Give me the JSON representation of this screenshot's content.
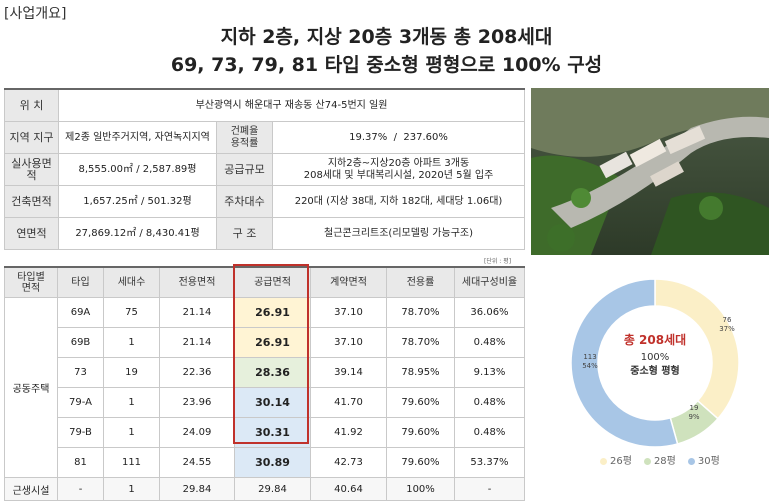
{
  "section_title": "[사업개요]",
  "headline": {
    "line1": "지하 2층, 지상 20층 3개동 총 208세대",
    "line2": "69, 73, 79, 81 타입 중소형 평형으로 100% 구성"
  },
  "info": {
    "location_label": "위 치",
    "location_value": "부산광역시 해운대구 재송동 산74-5번지 일원",
    "zone_label": "지역 지구",
    "zone_value": "제2종 일반주거지역, 자연녹지지역",
    "ratio_label": "건폐율\n용적률",
    "ratio_value": "19.37%  /  237.60%",
    "area_label": "실사용면적",
    "area_value": "8,555.00㎡ / 2,587.89평",
    "supply_label": "공급규모",
    "supply_value": "지하2층~지상20층 아파트 3개동\n208세대 및 부대복리시설, 2020년 5월 입주",
    "building_label": "건축면적",
    "building_value": "1,657.25㎡ / 501.32평",
    "parking_label": "주차대수",
    "parking_value": "220대 (지상 38대, 지하 182대, 세대당 1.06대)",
    "gross_label": "연면적",
    "gross_value": "27,869.12㎡ / 8,430.41평",
    "structure_label": "구 조",
    "structure_value": "철근콘크리트조(리모델링 가능구조)"
  },
  "unit_note": "[단위 : 평]",
  "types": {
    "headers": [
      "타입별\n면적",
      "타입",
      "세대수",
      "전용면적",
      "공급면적",
      "계약면적",
      "전용률",
      "세대구성비율"
    ],
    "group_label": "공동주택",
    "rows": [
      {
        "type": "69A",
        "units": "75",
        "exclusive": "21.14",
        "supply": "26.91",
        "contract": "37.10",
        "rate": "78.70%",
        "ratio": "36.06%",
        "color": "#fff4d4"
      },
      {
        "type": "69B",
        "units": "1",
        "exclusive": "21.14",
        "supply": "26.91",
        "contract": "37.10",
        "rate": "78.70%",
        "ratio": "0.48%",
        "color": "#fff4d4"
      },
      {
        "type": "73",
        "units": "19",
        "exclusive": "22.36",
        "supply": "28.36",
        "contract": "39.14",
        "rate": "78.95%",
        "ratio": "9.13%",
        "color": "#e6f0dc"
      },
      {
        "type": "79-A",
        "units": "1",
        "exclusive": "23.96",
        "supply": "30.14",
        "contract": "41.70",
        "rate": "79.60%",
        "ratio": "0.48%",
        "color": "#dce9f6"
      },
      {
        "type": "79-B",
        "units": "1",
        "exclusive": "24.09",
        "supply": "30.31",
        "contract": "41.92",
        "rate": "79.60%",
        "ratio": "0.48%",
        "color": "#dce9f6"
      },
      {
        "type": "81",
        "units": "111",
        "exclusive": "24.55",
        "supply": "30.89",
        "contract": "42.73",
        "rate": "79.60%",
        "ratio": "53.37%",
        "color": "#dce9f6"
      }
    ],
    "facility": {
      "label": "근생시설",
      "type": "-",
      "units": "1",
      "exclusive": "29.84",
      "supply": "29.84",
      "contract": "40.64",
      "rate": "100%",
      "ratio": "-"
    }
  },
  "donut": {
    "center_title": "총 208세대",
    "center_pct": "100%",
    "center_sub": "중소형 평형",
    "colors": {
      "p26": "#fbefc7",
      "p28": "#cfe2bd",
      "p30": "#a8c6e6"
    },
    "legend": [
      "26평",
      "28평",
      "30평"
    ],
    "chart_data": {
      "type": "pie",
      "categories": [
        "26평",
        "28평",
        "30평"
      ],
      "values": [
        76,
        19,
        113
      ],
      "percent_labels": [
        "37%",
        "9%",
        "54%"
      ]
    },
    "labels": {
      "p26_count": "76",
      "p26_pct": "37%",
      "p28_count": "19",
      "p28_pct": "9%",
      "p30_count": "113",
      "p30_pct": "54%"
    }
  }
}
